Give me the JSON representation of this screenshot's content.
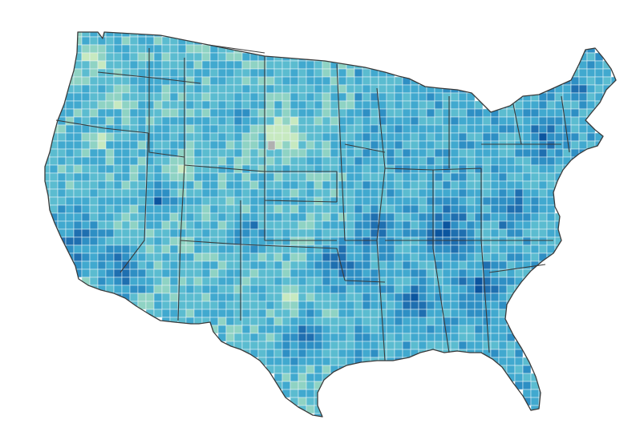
{
  "map": {
    "type": "choropleth",
    "region": "contiguous-united-states",
    "unit": "county",
    "legend": null,
    "palette": [
      "#ffffff",
      "#c7e9c0",
      "#8fd3c4",
      "#5bbcd0",
      "#41a9cf",
      "#2e8fc4",
      "#1f6fb0",
      "#0b559f"
    ],
    "no_data_color": "#b0b0b0",
    "state_border_color": "#3a3a3a",
    "county_border_color": "#e9f4f7"
  }
}
